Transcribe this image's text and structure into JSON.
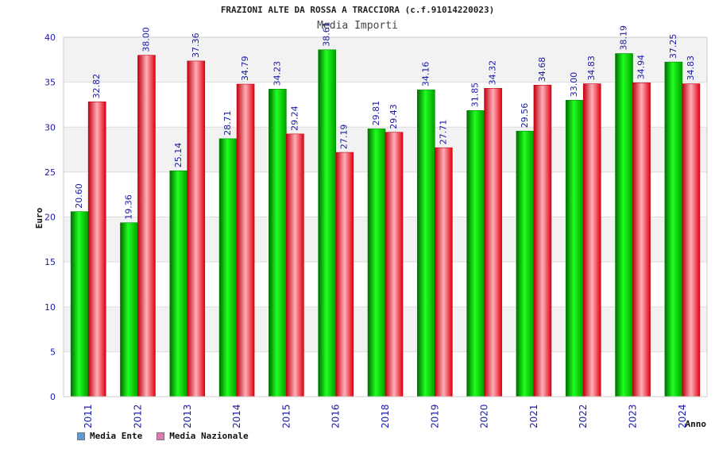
{
  "chart_data": {
    "type": "bar",
    "title": "FRAZIONI ALTE DA ROSSA A TRACCIORA (c.f.91014220023)",
    "subtitle": "Media Importi",
    "xlabel": "Anno",
    "ylabel": "Euro",
    "ylim": [
      0,
      40
    ],
    "yticks": [
      0,
      5,
      10,
      15,
      20,
      25,
      30,
      35,
      40
    ],
    "categories": [
      "2011",
      "2012",
      "2013",
      "2014",
      "2015",
      "2016",
      "2018",
      "2019",
      "2020",
      "2021",
      "2022",
      "2023",
      "2024"
    ],
    "series": [
      {
        "name": "Media Ente",
        "color": "#00c000",
        "values": [
          20.6,
          19.36,
          25.14,
          28.71,
          34.23,
          38.61,
          29.81,
          34.16,
          31.85,
          29.56,
          33.0,
          38.19,
          37.25
        ],
        "labels": [
          "20.60",
          "19.36",
          "25.14",
          "28.71",
          "34.23",
          "38.61",
          "29.81",
          "34.16",
          "31.85",
          "29.56",
          "33.00",
          "38.19",
          "37.25"
        ]
      },
      {
        "name": "Media Nazionale",
        "color": "#e00010",
        "values": [
          32.82,
          38.0,
          37.36,
          34.79,
          29.24,
          27.19,
          29.43,
          27.71,
          34.32,
          34.68,
          34.83,
          34.94,
          34.83
        ],
        "labels": [
          "32.82",
          "38.00",
          "37.36",
          "34.79",
          "29.24",
          "27.19",
          "29.43",
          "27.71",
          "34.32",
          "34.68",
          "34.83",
          "34.94",
          "34.83"
        ]
      }
    ],
    "grid": true,
    "legend_position": "bottom-left",
    "legend_swatch_colors": [
      "#5b9bd5",
      "#e07ab0"
    ]
  }
}
